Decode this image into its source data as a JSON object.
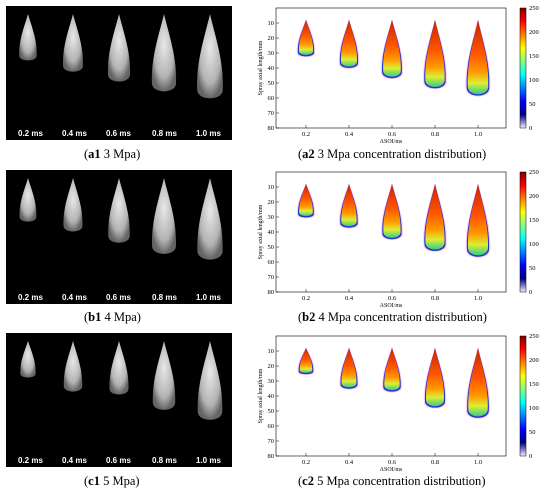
{
  "rows": [
    {
      "photo_caption_id": "a1",
      "photo_caption_text": " 3 Mpa",
      "chart_caption_id": "a2",
      "chart_caption_text": " 3 Mpa concentration distribution",
      "time_labels": [
        "0.2 ms",
        "0.4 ms",
        "0.6 ms",
        "0.8 ms",
        "1.0 ms"
      ],
      "spray_lengths_mm": [
        33,
        41,
        48,
        55,
        60
      ]
    },
    {
      "photo_caption_id": "b1",
      "photo_caption_text": " 4 Mpa",
      "chart_caption_id": "b2",
      "chart_caption_text": " 4 Mpa concentration distribution",
      "time_labels": [
        "0.2 ms",
        "0.4 ms",
        "0.6 ms",
        "0.8 ms",
        "1.0 ms"
      ],
      "spray_lengths_mm": [
        31,
        38,
        46,
        54,
        58
      ]
    },
    {
      "photo_caption_id": "c1",
      "photo_caption_text": " 5 Mpa",
      "chart_caption_id": "c2",
      "chart_caption_text": " 5 Mpa concentration distribution",
      "time_labels": [
        "0.2 ms",
        "0.4 ms",
        "0.6 ms",
        "0.8 ms",
        "1.0 ms"
      ],
      "spray_lengths_mm": [
        26,
        36,
        38,
        49,
        56
      ]
    }
  ],
  "chart_data": {
    "type": "heatmap",
    "xlabel": "ASOI/ms",
    "ylabel": "Spray axial length/mm",
    "x_ticks": [
      "0.2",
      "0.4",
      "0.6",
      "0.8",
      "1.0"
    ],
    "y_ticks": [
      "10",
      "20",
      "30",
      "40",
      "50",
      "60",
      "70",
      "80"
    ],
    "ylim": [
      0,
      80
    ],
    "y_inverted": true,
    "colorbar_ticks": [
      "250",
      "200",
      "150",
      "100",
      "50",
      "0"
    ],
    "colorbar_range": [
      0,
      250
    ],
    "colormap": [
      "#800000",
      "#ff0000",
      "#ff8000",
      "#ffff00",
      "#80ff80",
      "#00ffff",
      "#0080ff",
      "#0000ff",
      "#000080",
      "#f0f0ff"
    ]
  }
}
